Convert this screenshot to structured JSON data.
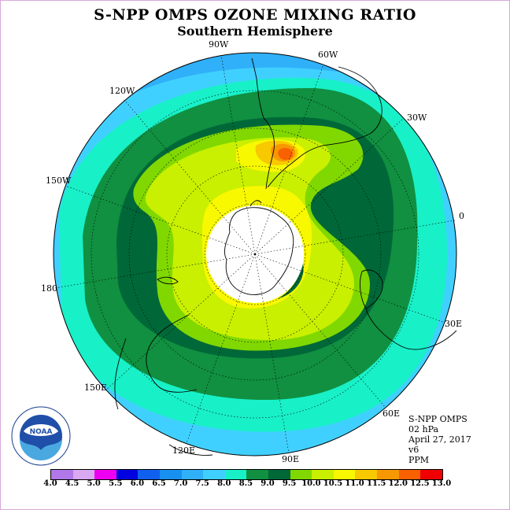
{
  "title": "S-NPP OMPS OZONE MIXING RATIO",
  "subtitle": "Southern Hemisphere",
  "longitude_labels": [
    "90W",
    "60W",
    "120W",
    "30W",
    "150W",
    "0",
    "180",
    "30E",
    "150E",
    "60E",
    "120E",
    "90E"
  ],
  "info": {
    "instrument": "S-NPP OMPS",
    "level": "02 hPa",
    "date": "April 27, 2017",
    "version": "v6",
    "units": "PPM"
  },
  "logo": {
    "text": "NOAA",
    "icon": "noaa-logo"
  },
  "colorbar": {
    "ticks": [
      "4.0",
      "4.5",
      "5.0",
      "5.5",
      "6.0",
      "6.5",
      "7.0",
      "7.5",
      "8.0",
      "8.5",
      "9.0",
      "9.5",
      "10.0",
      "10.5",
      "11.0",
      "11.5",
      "12.0",
      "12.5",
      "13.0"
    ],
    "colors": [
      "#b078e8",
      "#d8a8f0",
      "#f000f0",
      "#0000e0",
      "#1060f0",
      "#1890f0",
      "#30b0f8",
      "#40d0ff",
      "#18f0c8",
      "#109040",
      "#006838",
      "#80d800",
      "#c8f000",
      "#f8f800",
      "#f8c800",
      "#f89800",
      "#f86000",
      "#f00000",
      "#885030"
    ]
  }
}
